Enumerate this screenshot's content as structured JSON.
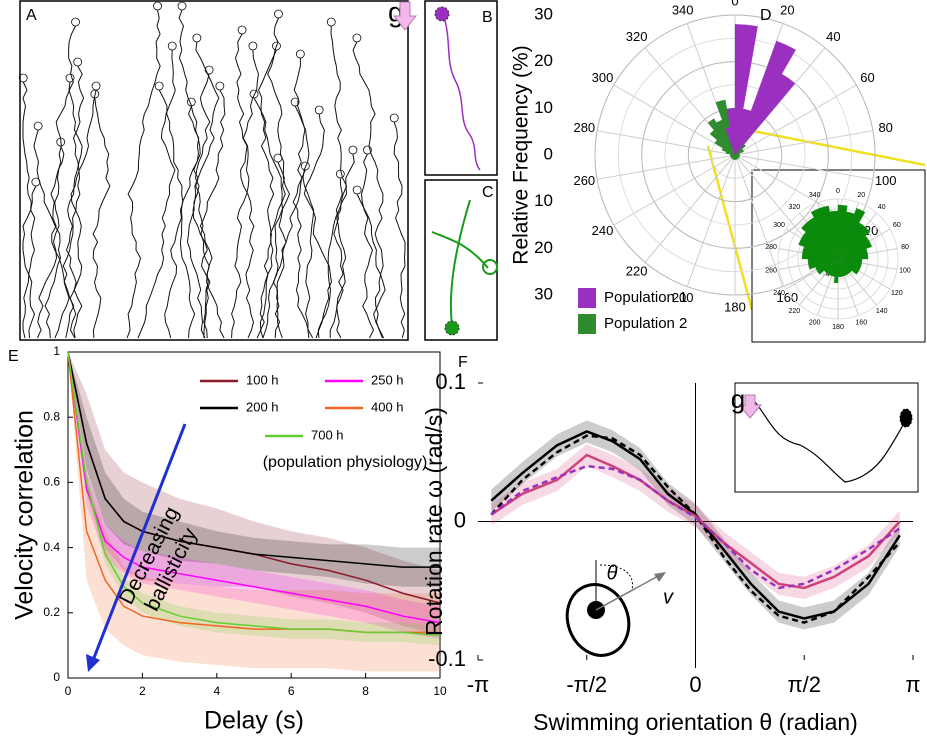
{
  "labels": {
    "A": "A",
    "B": "B",
    "C": "C",
    "g": "g"
  },
  "chart_data": [
    {
      "type": "polar_bar",
      "panel": "D",
      "ylabel": "Relative Frequency (%)",
      "rlim": [
        0,
        30
      ],
      "rticks": [
        0,
        10,
        20,
        30
      ],
      "thetaticks": [
        0,
        20,
        40,
        60,
        80,
        100,
        120,
        140,
        160,
        180,
        200,
        220,
        240,
        260,
        280,
        300,
        320,
        340
      ],
      "theta": [
        0,
        10,
        20,
        30,
        40,
        50,
        60,
        70,
        80,
        90,
        100,
        110,
        120,
        130,
        140,
        150,
        160,
        170,
        180,
        190,
        200,
        210,
        220,
        230,
        240,
        250,
        260,
        270,
        280,
        290,
        300,
        310,
        320,
        330,
        340,
        350
      ],
      "grid": true,
      "legend": "lower left",
      "series": [
        {
          "name": "Population 1",
          "color": "#9b30c0",
          "values": [
            28,
            10,
            26,
            20,
            0,
            0,
            0,
            0,
            0,
            0,
            0,
            0,
            0,
            0,
            0,
            0,
            0,
            0,
            0,
            0,
            0,
            0,
            0,
            0,
            0,
            0,
            0,
            0,
            0,
            0,
            0,
            0,
            0,
            0,
            6,
            10
          ]
        },
        {
          "name": "Population 2",
          "color": "#2e8b2e",
          "values": [
            6,
            8,
            5,
            4,
            3,
            2,
            2,
            1,
            1,
            1,
            1,
            1,
            1,
            1,
            1,
            1,
            1,
            1,
            1,
            1,
            1,
            1,
            1,
            1,
            1,
            1,
            1,
            1,
            2,
            3,
            5,
            7,
            9,
            8,
            12,
            10
          ]
        }
      ]
    },
    {
      "type": "polar_bar",
      "rlim": [
        0,
        10
      ],
      "thetaticks": [
        0,
        20,
        40,
        60,
        80,
        100,
        120,
        140,
        160,
        180,
        200,
        220,
        240,
        260,
        280,
        300,
        320,
        340
      ],
      "theta": [
        0,
        10,
        20,
        30,
        40,
        50,
        60,
        70,
        80,
        90,
        100,
        110,
        120,
        130,
        140,
        150,
        160,
        170,
        180,
        190,
        200,
        210,
        220,
        230,
        240,
        250,
        260,
        270,
        280,
        290,
        300,
        310,
        320,
        330,
        340,
        350
      ],
      "grid": true,
      "series": [
        {
          "color": "#0a8a0a",
          "values": [
            9,
            8,
            9,
            7,
            7,
            6,
            6,
            5,
            5,
            4,
            4,
            4,
            4,
            3,
            3,
            3,
            3,
            3,
            4,
            3,
            3,
            3,
            3,
            4,
            4,
            5,
            5,
            6,
            6,
            7,
            7,
            8,
            8,
            9,
            9,
            8
          ]
        }
      ]
    },
    {
      "type": "line",
      "panel": "E",
      "xlabel": "Delay (s)",
      "ylabel": "Velocity correlation",
      "xlim": [
        0,
        10
      ],
      "ylim": [
        0,
        1
      ],
      "xticks": [
        0,
        2,
        4,
        6,
        8,
        10
      ],
      "yticks": [
        0,
        0.2,
        0.4,
        0.6,
        0.8,
        1
      ],
      "legend": "upper right",
      "annotations": [
        "(population physiology)",
        "Decreasing",
        "ballisticity"
      ],
      "x": [
        0,
        0.5,
        1,
        1.5,
        2,
        3,
        4,
        5,
        6,
        7,
        8,
        9,
        10
      ],
      "series": [
        {
          "name": "100 h",
          "color": "#8b1a2b",
          "values": [
            1,
            0.72,
            0.55,
            0.48,
            0.45,
            0.42,
            0.4,
            0.38,
            0.35,
            0.33,
            0.3,
            0.26,
            0.23
          ],
          "error": [
            0,
            0.15,
            0.15,
            0.15,
            0.15,
            0.13,
            0.12,
            0.1,
            0.1,
            0.1,
            0.1,
            0.1,
            0.1
          ]
        },
        {
          "name": "200 h",
          "color": "#000000",
          "values": [
            1,
            0.72,
            0.55,
            0.48,
            0.45,
            0.42,
            0.4,
            0.38,
            0.37,
            0.36,
            0.35,
            0.34,
            0.34
          ],
          "error": [
            0,
            0.08,
            0.08,
            0.07,
            0.06,
            0.06,
            0.05,
            0.05,
            0.05,
            0.05,
            0.06,
            0.06,
            0.06
          ]
        },
        {
          "name": "250 h",
          "color": "#ff00ff",
          "values": [
            1,
            0.58,
            0.42,
            0.37,
            0.34,
            0.32,
            0.3,
            0.28,
            0.26,
            0.24,
            0.22,
            0.19,
            0.17
          ],
          "error": [
            0,
            0.05,
            0.05,
            0.05,
            0.05,
            0.05,
            0.05,
            0.05,
            0.05,
            0.05,
            0.05,
            0.05,
            0.05
          ]
        },
        {
          "name": "400 h",
          "color": "#f26522",
          "values": [
            1,
            0.45,
            0.3,
            0.22,
            0.19,
            0.17,
            0.16,
            0.15,
            0.15,
            0.15,
            0.14,
            0.14,
            0.14
          ],
          "error": [
            0,
            0.15,
            0.15,
            0.12,
            0.12,
            0.12,
            0.12,
            0.12,
            0.12,
            0.12,
            0.12,
            0.12,
            0.12
          ]
        },
        {
          "name": "700 h",
          "color": "#66cc33",
          "values": [
            1,
            0.6,
            0.38,
            0.28,
            0.23,
            0.19,
            0.17,
            0.16,
            0.15,
            0.15,
            0.14,
            0.14,
            0.13
          ],
          "error": [
            0,
            0.03,
            0.03,
            0.03,
            0.03,
            0.03,
            0.03,
            0.03,
            0.03,
            0.03,
            0.03,
            0.03,
            0.03
          ]
        }
      ]
    },
    {
      "type": "line",
      "panel": "F",
      "xlabel": "Swimming orientation θ (radian)",
      "ylabel": "Rotation rate ω (rad/s)",
      "xlim": [
        -3.1416,
        3.1416
      ],
      "ylim": [
        -0.1,
        0.1
      ],
      "xticks": [
        {
          "value": -3.1416,
          "label": "-π"
        },
        {
          "value": -1.5708,
          "label": "-π/2"
        },
        0,
        {
          "value": 1.5708,
          "label": "π/2"
        },
        {
          "value": 3.1416,
          "label": "π"
        }
      ],
      "yticks": [
        -0.1,
        0,
        0.1
      ],
      "annotations": [
        "θ",
        "v"
      ],
      "inset_label": "g",
      "x": [
        -2.95,
        -2.5,
        -2,
        -1.57,
        -1.2,
        -0.8,
        -0.4,
        0,
        0.4,
        0.8,
        1.2,
        1.57,
        2,
        2.5,
        2.95
      ],
      "series": [
        {
          "color": "#000000",
          "values": [
            0.015,
            0.035,
            0.055,
            0.065,
            0.058,
            0.045,
            0.02,
            0.005,
            -0.02,
            -0.045,
            -0.065,
            -0.07,
            -0.065,
            -0.045,
            -0.01
          ],
          "error": [
            0.008,
            0.008,
            0.008,
            0.008,
            0.008,
            0.008,
            0.008,
            0.008,
            0.008,
            0.008,
            0.008,
            0.008,
            0.008,
            0.008,
            0.008
          ]
        },
        {
          "color": "#000000",
          "dash": true,
          "values": [
            0.005,
            0.03,
            0.05,
            0.062,
            0.06,
            0.048,
            0.025,
            0.005,
            -0.025,
            -0.05,
            -0.068,
            -0.073,
            -0.065,
            -0.04,
            -0.015
          ]
        },
        {
          "color": "#d0407a",
          "values": [
            0.005,
            0.02,
            0.03,
            0.048,
            0.04,
            0.03,
            0.015,
            0.004,
            -0.015,
            -0.03,
            -0.045,
            -0.048,
            -0.04,
            -0.025,
            0.0
          ],
          "error": [
            0.008,
            0.008,
            0.008,
            0.008,
            0.008,
            0.008,
            0.008,
            0.008,
            0.008,
            0.008,
            0.008,
            0.008,
            0.008,
            0.008,
            0.008
          ]
        },
        {
          "color": "#9b30c0",
          "dash": true,
          "values": [
            0.005,
            0.022,
            0.032,
            0.04,
            0.038,
            0.03,
            0.015,
            0.003,
            -0.015,
            -0.035,
            -0.048,
            -0.045,
            -0.035,
            -0.02,
            -0.005
          ]
        }
      ]
    }
  ]
}
